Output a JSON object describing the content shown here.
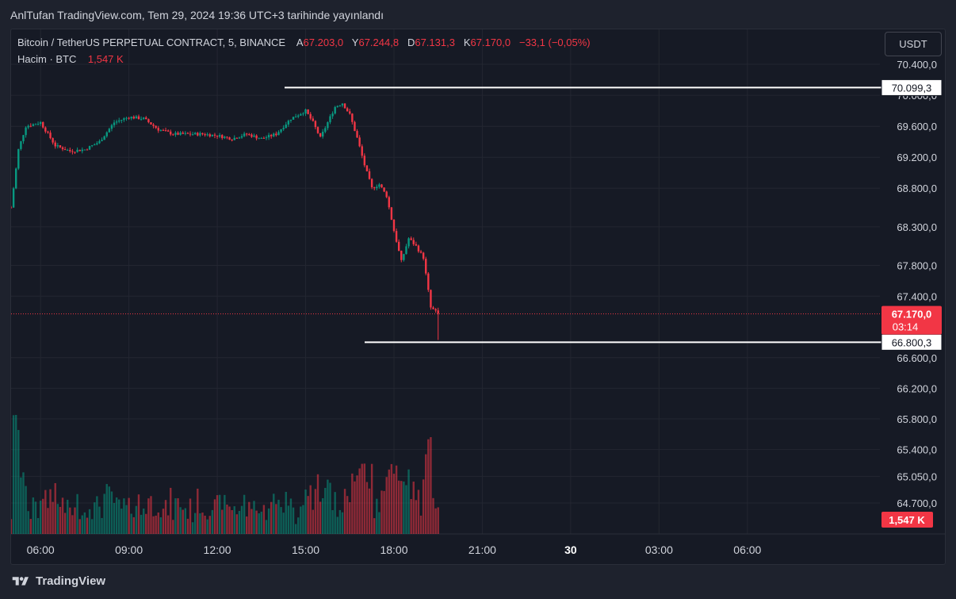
{
  "caption": "AnlTufan TradingView.com, Tem 29, 2024 19:36 UTC+3 tarihinde yayınlandı",
  "legend": {
    "symbol": "Bitcoin / TetherUS PERPETUAL CONTRACT, 5, BINANCE",
    "open_label": "A",
    "open": "67.203,0",
    "high_label": "Y",
    "high": "67.244,8",
    "low_label": "D",
    "low": "67.131,3",
    "close_label": "K",
    "close": "67.170,0",
    "change": "−33,1 (−0,05%)",
    "volume_label": "Hacim · BTC",
    "volume": "1,547 K"
  },
  "currency_button": "USDT",
  "footer_brand": "TradingView",
  "colors": {
    "up": "#089981",
    "down": "#f23645",
    "background": "#161a25",
    "grid": "#232631",
    "text": "#d1d4dc",
    "line": "#ffffff"
  },
  "chart_data": {
    "type": "candlestick",
    "symbol": "BTCUSDT.P",
    "interval": "5",
    "price_axis_ticks": [
      "70.400,0",
      "70.000,0",
      "69.600,0",
      "69.200,0",
      "68.800,0",
      "68.300,0",
      "67.800,0",
      "67.400,0",
      "66.600,0",
      "66.200,0",
      "65.800,0",
      "65.400,0",
      "65.050,0",
      "64.700,0"
    ],
    "time_axis_ticks": [
      "06:00",
      "09:00",
      "12:00",
      "15:00",
      "18:00",
      "21:00",
      "30",
      "03:00",
      "06:00"
    ],
    "horizontal_lines": [
      {
        "price": 70099.3,
        "label": "70.099,3"
      },
      {
        "price": 66800.3,
        "label": "66.800,3"
      }
    ],
    "last_price": {
      "value": 67170.0,
      "label": "67.170,0",
      "countdown": "03:14"
    },
    "last_volume_label": "1,547 K",
    "price_path": [
      {
        "t": "05:00",
        "p": 68550
      },
      {
        "t": "05:15",
        "p": 69300
      },
      {
        "t": "05:30",
        "p": 69600
      },
      {
        "t": "06:00",
        "p": 69650
      },
      {
        "t": "06:30",
        "p": 69350
      },
      {
        "t": "07:00",
        "p": 69280
      },
      {
        "t": "07:30",
        "p": 69300
      },
      {
        "t": "08:00",
        "p": 69400
      },
      {
        "t": "08:30",
        "p": 69650
      },
      {
        "t": "09:00",
        "p": 69720
      },
      {
        "t": "09:30",
        "p": 69700
      },
      {
        "t": "10:00",
        "p": 69560
      },
      {
        "t": "10:30",
        "p": 69500
      },
      {
        "t": "11:00",
        "p": 69500
      },
      {
        "t": "11:30",
        "p": 69500
      },
      {
        "t": "12:00",
        "p": 69480
      },
      {
        "t": "12:30",
        "p": 69440
      },
      {
        "t": "13:00",
        "p": 69500
      },
      {
        "t": "13:30",
        "p": 69440
      },
      {
        "t": "14:00",
        "p": 69500
      },
      {
        "t": "14:30",
        "p": 69700
      },
      {
        "t": "15:00",
        "p": 69800
      },
      {
        "t": "15:15",
        "p": 69650
      },
      {
        "t": "15:30",
        "p": 69450
      },
      {
        "t": "15:45",
        "p": 69650
      },
      {
        "t": "16:00",
        "p": 69850
      },
      {
        "t": "16:15",
        "p": 69900
      },
      {
        "t": "16:30",
        "p": 69750
      },
      {
        "t": "16:45",
        "p": 69450
      },
      {
        "t": "17:00",
        "p": 69100
      },
      {
        "t": "17:15",
        "p": 68800
      },
      {
        "t": "17:30",
        "p": 68850
      },
      {
        "t": "17:45",
        "p": 68700
      },
      {
        "t": "18:00",
        "p": 68250
      },
      {
        "t": "18:15",
        "p": 67850
      },
      {
        "t": "18:30",
        "p": 68150
      },
      {
        "t": "18:45",
        "p": 68050
      },
      {
        "t": "19:00",
        "p": 67900
      },
      {
        "t": "19:15",
        "p": 67250
      },
      {
        "t": "19:30",
        "p": 67170
      }
    ],
    "volume_hint": {
      "max_k": 10.0,
      "last_k": 1.547
    }
  }
}
